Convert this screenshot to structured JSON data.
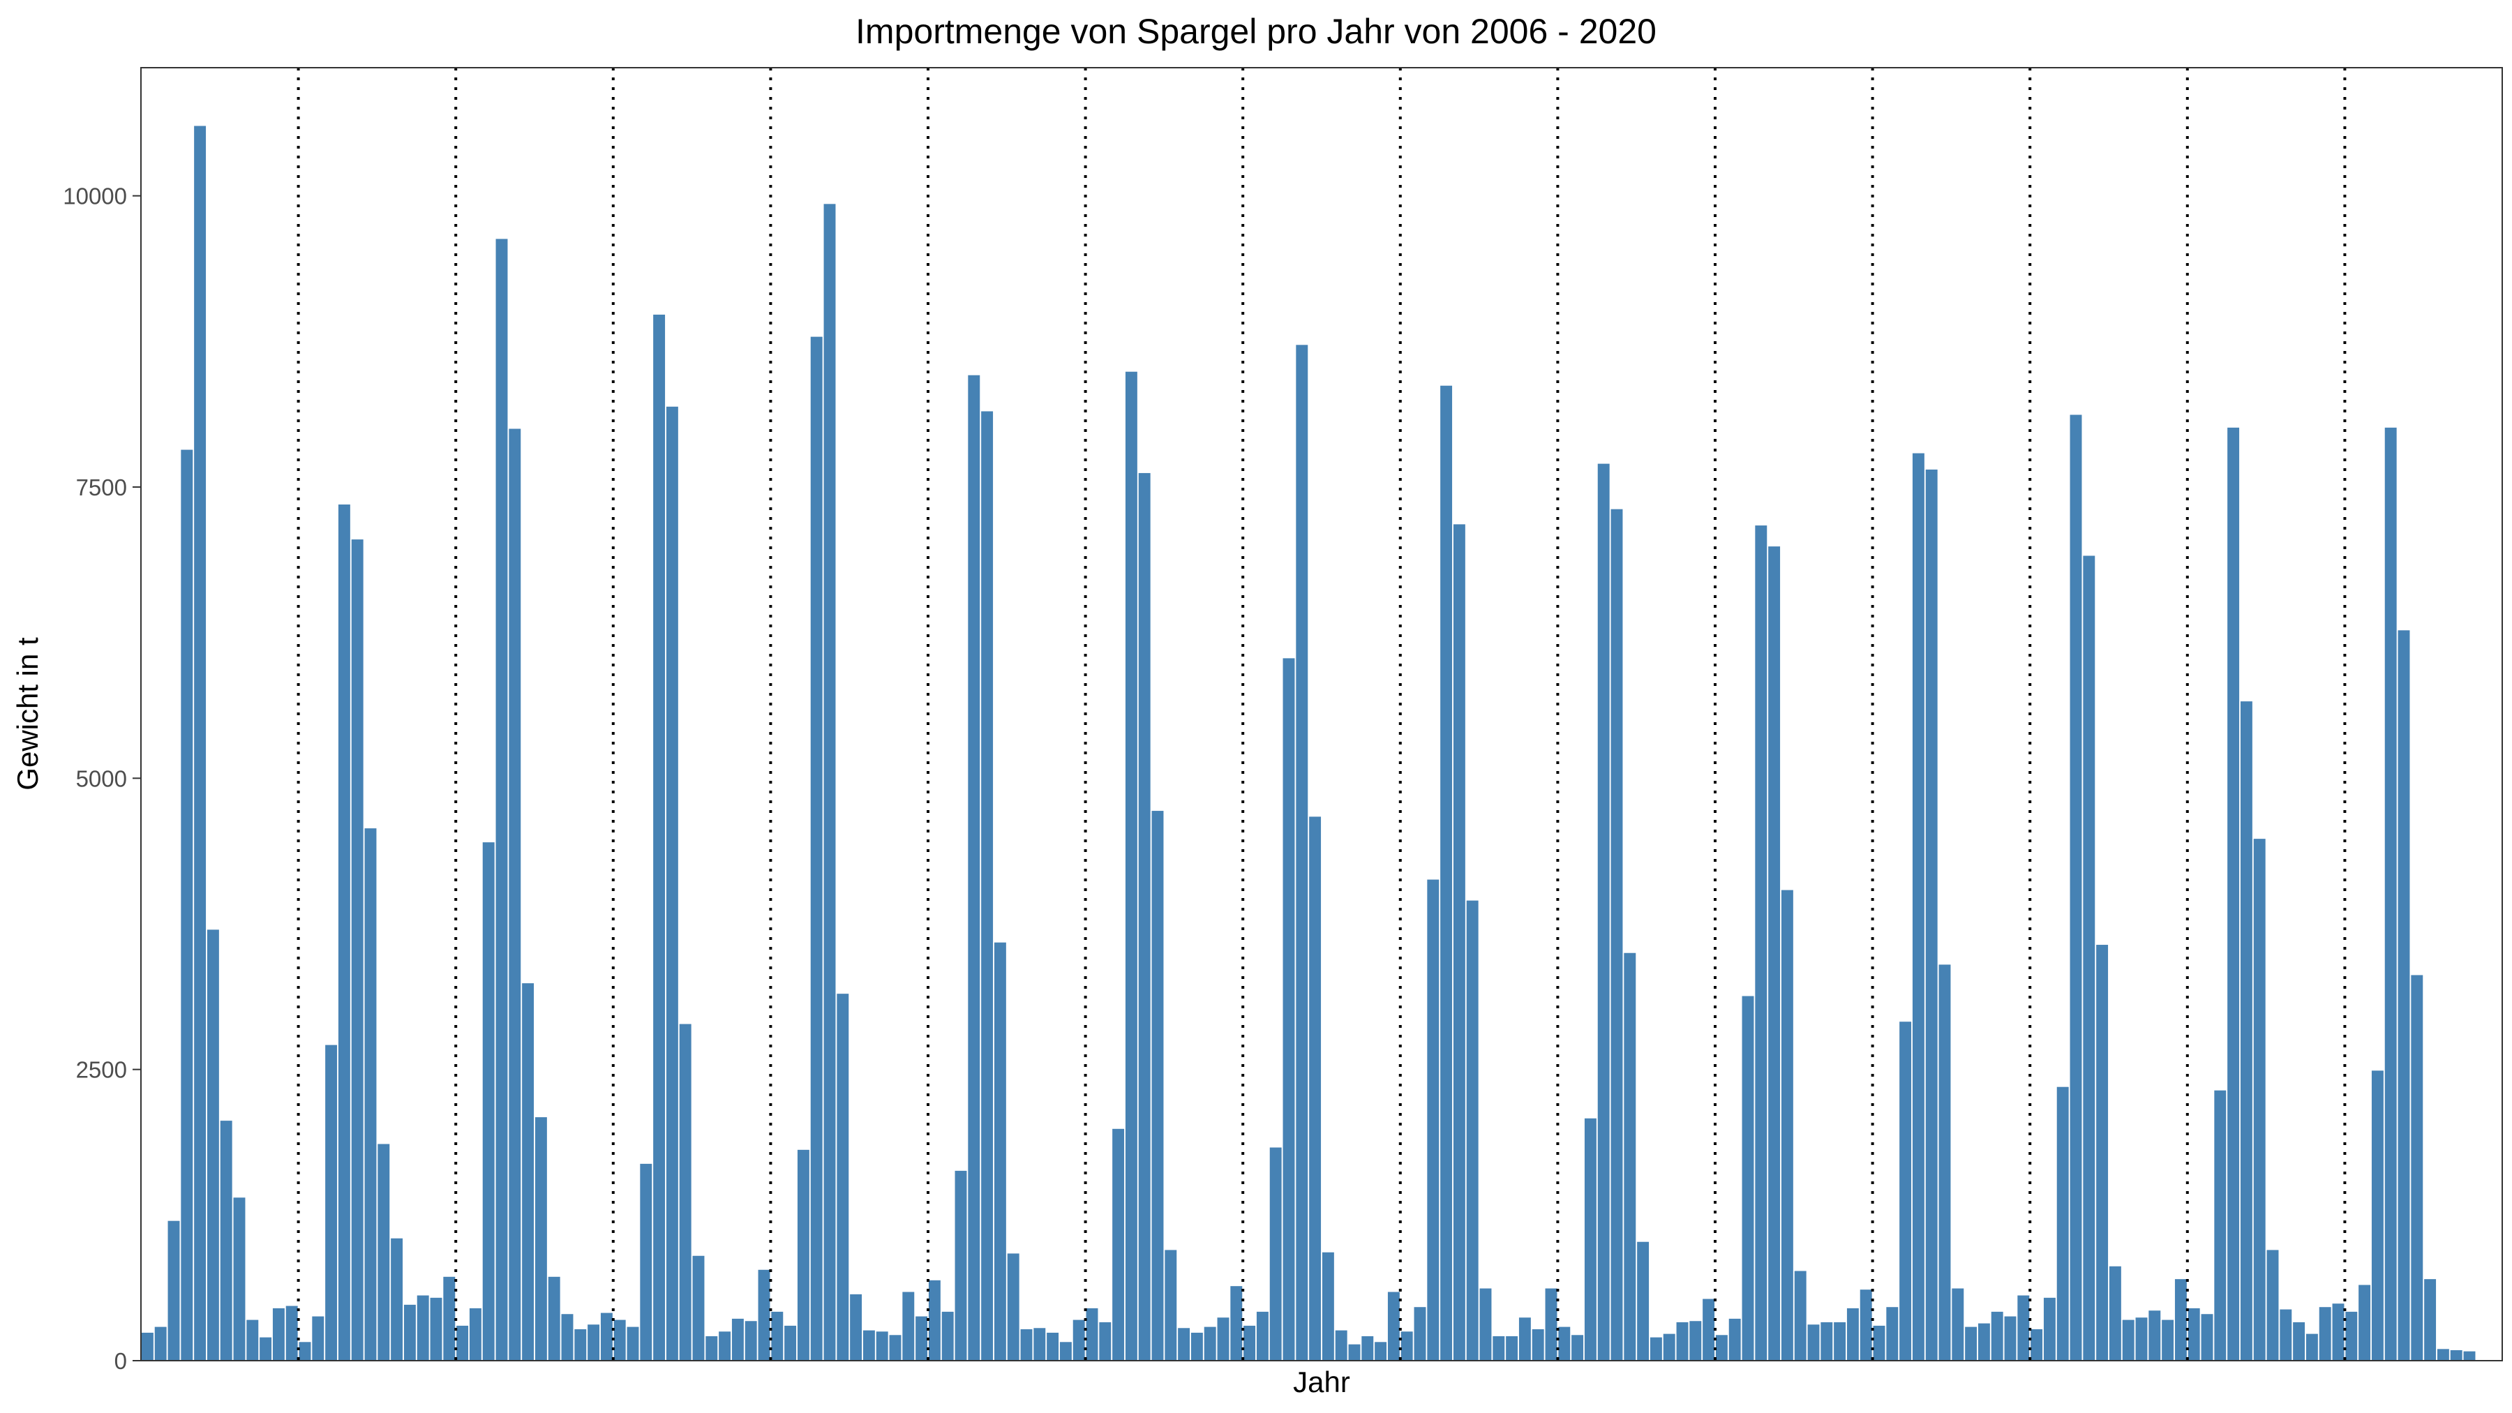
{
  "chart_data": {
    "type": "bar",
    "title": "Importmenge von Spargel pro Jahr von 2006 - 2020",
    "xlabel": "Jahr",
    "ylabel": "Gewicht in t",
    "ylim": [
      0,
      11100
    ],
    "yticks": [
      0,
      2500,
      5000,
      7500,
      10000
    ],
    "grid": false,
    "legend": "none",
    "bar_color": "#4682B4",
    "separator_color": "#000000",
    "months_per_year": 12,
    "years": [
      {
        "values": [
          240,
          290,
          1200,
          7820,
          10600,
          3700,
          2060,
          1400,
          350,
          200,
          450,
          470
        ]
      },
      {
        "values": [
          160,
          380,
          2710,
          7350,
          7050,
          4570,
          1860,
          1050,
          480,
          560,
          540,
          720
        ]
      },
      {
        "values": [
          300,
          450,
          4450,
          9630,
          8000,
          3240,
          2090,
          720,
          400,
          270,
          310,
          410
        ]
      },
      {
        "values": [
          350,
          290,
          1690,
          8980,
          8190,
          2890,
          900,
          210,
          250,
          360,
          340,
          780
        ]
      },
      {
        "values": [
          420,
          300,
          1810,
          8790,
          9930,
          3150,
          570,
          260,
          250,
          220,
          590,
          380
        ]
      },
      {
        "values": [
          690,
          420,
          1630,
          8460,
          8150,
          3590,
          920,
          270,
          280,
          240,
          160,
          350
        ]
      },
      {
        "values": [
          450,
          330,
          1990,
          8490,
          7620,
          4720,
          950,
          280,
          240,
          290,
          370,
          640
        ]
      },
      {
        "values": [
          300,
          420,
          1830,
          6030,
          8720,
          4670,
          930,
          260,
          140,
          210,
          160,
          590
        ]
      },
      {
        "values": [
          250,
          460,
          4130,
          8370,
          7180,
          3950,
          620,
          210,
          210,
          370,
          270,
          620
        ]
      },
      {
        "values": [
          290,
          220,
          2080,
          7700,
          7310,
          3500,
          1020,
          200,
          230,
          330,
          340,
          530
        ]
      },
      {
        "values": [
          220,
          360,
          3130,
          7170,
          6990,
          4040,
          770,
          310,
          330,
          330,
          450,
          610
        ]
      },
      {
        "values": [
          300,
          460,
          2910,
          7790,
          7650,
          3400,
          620,
          290,
          320,
          420,
          380,
          560
        ]
      },
      {
        "values": [
          270,
          540,
          2350,
          8120,
          6910,
          3570,
          810,
          350,
          370,
          430,
          350,
          700
        ]
      },
      {
        "values": [
          450,
          400,
          2320,
          8010,
          5660,
          4480,
          950,
          440,
          330,
          230,
          460,
          490
        ]
      },
      {
        "values": [
          420,
          650,
          2490,
          8010,
          6270,
          3310,
          700,
          100,
          90,
          80
        ]
      }
    ]
  }
}
